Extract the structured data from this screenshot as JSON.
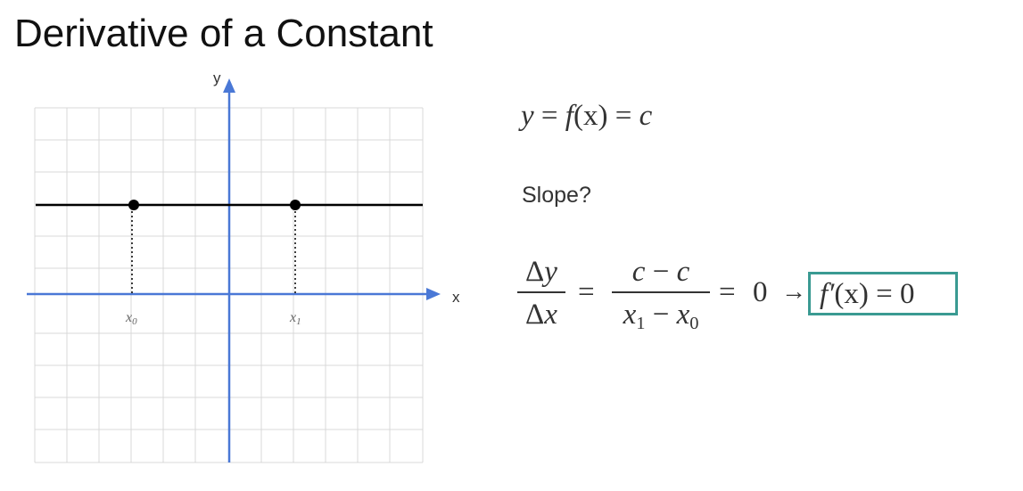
{
  "slide": {
    "title": "Derivative of a Constant"
  },
  "graph": {
    "x_axis_label": "x",
    "y_axis_label": "y",
    "x0_label": "x",
    "x0_sub": "0",
    "x1_label": "x",
    "x1_sub": "1",
    "grid_color": "#d8d8d8",
    "axis_color": "#4a78d6",
    "line_color": "#000000"
  },
  "equations": {
    "definition": {
      "y": "y",
      "eq_a": " = ",
      "f": "f",
      "paren_x": "(x)",
      "eq_b": " = ",
      "c": "c"
    },
    "slope_label": "Slope?",
    "fraction1": {
      "num_delta": "Δ",
      "num_var": "y",
      "den_delta": "Δ",
      "den_var": "x"
    },
    "equals1": "=",
    "fraction2": {
      "num_a": "c",
      "num_minus": " − ",
      "num_b": "c",
      "den_a": "x",
      "den_a_sub": "1",
      "den_minus": " − ",
      "den_b": "x",
      "den_b_sub": "0"
    },
    "equals2": "=",
    "zero": "0",
    "arrow": "→",
    "result": {
      "f_prime": "f′",
      "paren_x": "(x)",
      "eq": " = ",
      "zero": "0"
    },
    "result_box_color": "#3a9a92"
  }
}
